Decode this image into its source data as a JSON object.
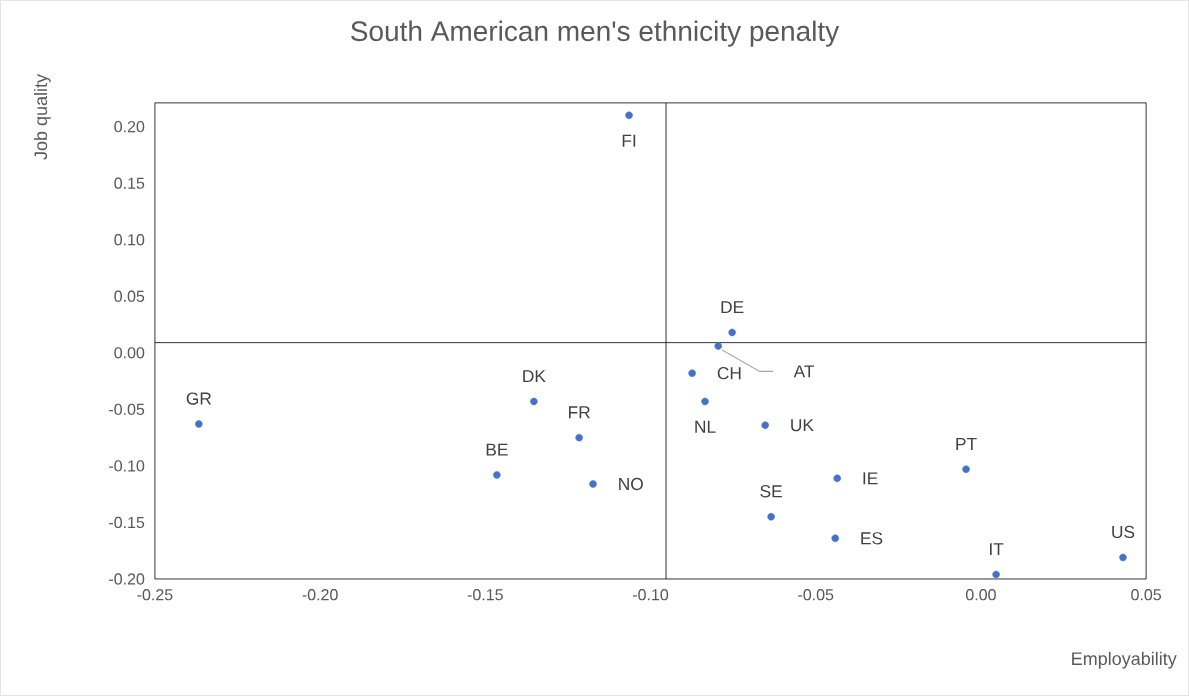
{
  "chart_data": {
    "type": "scatter",
    "title": "South American men's ethnicity penalty",
    "xlabel": "Employability",
    "ylabel": "Job quality",
    "x": [
      -0.2367,
      -0.1465,
      -0.1353,
      -0.1216,
      -0.1174,
      -0.1065,
      -0.0874,
      -0.0835,
      -0.0795,
      -0.0753,
      -0.0653,
      -0.0635,
      -0.0435,
      -0.0441,
      -0.0045,
      0.0046,
      0.043
    ],
    "series": [
      {
        "color": "#4472c4",
        "values": [
          -0.063,
          -0.108,
          -0.043,
          -0.075,
          -0.116,
          0.21,
          -0.018,
          -0.043,
          0.006,
          0.018,
          -0.064,
          -0.145,
          -0.111,
          -0.164,
          -0.103,
          -0.196,
          -0.181
        ]
      }
    ],
    "annotations": [
      {
        "text": "GR",
        "x": -0.2367,
        "y": -0.063
      },
      {
        "text": "BE",
        "x": -0.1465,
        "y": -0.108
      },
      {
        "text": "DK",
        "x": -0.1353,
        "y": -0.043
      },
      {
        "text": "FR",
        "x": -0.1216,
        "y": -0.075
      },
      {
        "text": "NO",
        "x": -0.1174,
        "y": -0.116
      },
      {
        "text": "FI",
        "x": -0.1065,
        "y": 0.21
      },
      {
        "text": "CH",
        "x": -0.0874,
        "y": -0.018
      },
      {
        "text": "NL",
        "x": -0.0835,
        "y": -0.043
      },
      {
        "text": "AT",
        "x": -0.0795,
        "y": 0.006
      },
      {
        "text": "DE",
        "x": -0.0753,
        "y": 0.018
      },
      {
        "text": "UK",
        "x": -0.0653,
        "y": -0.064
      },
      {
        "text": "SE",
        "x": -0.0635,
        "y": -0.145
      },
      {
        "text": "IE",
        "x": -0.0435,
        "y": -0.111
      },
      {
        "text": "ES",
        "x": -0.0441,
        "y": -0.164
      },
      {
        "text": "PT",
        "x": -0.0045,
        "y": -0.103
      },
      {
        "text": "IT",
        "x": 0.0046,
        "y": -0.196
      },
      {
        "text": "US",
        "x": 0.043,
        "y": -0.181
      }
    ],
    "ref_lines": [
      {
        "axis": "x",
        "value": -0.0953,
        "color": "#000000"
      },
      {
        "axis": "y",
        "value": 0.009,
        "color": "#000000"
      }
    ],
    "xlim": [
      -0.25,
      0.05
    ],
    "ylim": [
      -0.2,
      0.221
    ],
    "xticks": [
      {
        "value": -0.25,
        "label": "-0.25"
      },
      {
        "value": -0.2,
        "label": "-0.20"
      },
      {
        "value": -0.15,
        "label": "-0.15"
      },
      {
        "value": -0.1,
        "label": "-0.10"
      },
      {
        "value": -0.05,
        "label": "-0.05"
      },
      {
        "value": 0,
        "label": "0.00"
      },
      {
        "value": 0.05,
        "label": "0.05"
      }
    ],
    "yticks": [
      {
        "value": -0.2,
        "label": "-0.20"
      },
      {
        "value": -0.15,
        "label": "-0.15"
      },
      {
        "value": -0.1,
        "label": "-0.10"
      },
      {
        "value": -0.05,
        "label": "-0.05"
      },
      {
        "value": 0,
        "label": "0.00"
      },
      {
        "value": 0.05,
        "label": "0.05"
      },
      {
        "value": 0.1,
        "label": "0.10"
      },
      {
        "value": 0.15,
        "label": "0.15"
      },
      {
        "value": 0.2,
        "label": "0.20"
      }
    ],
    "grid": false
  }
}
